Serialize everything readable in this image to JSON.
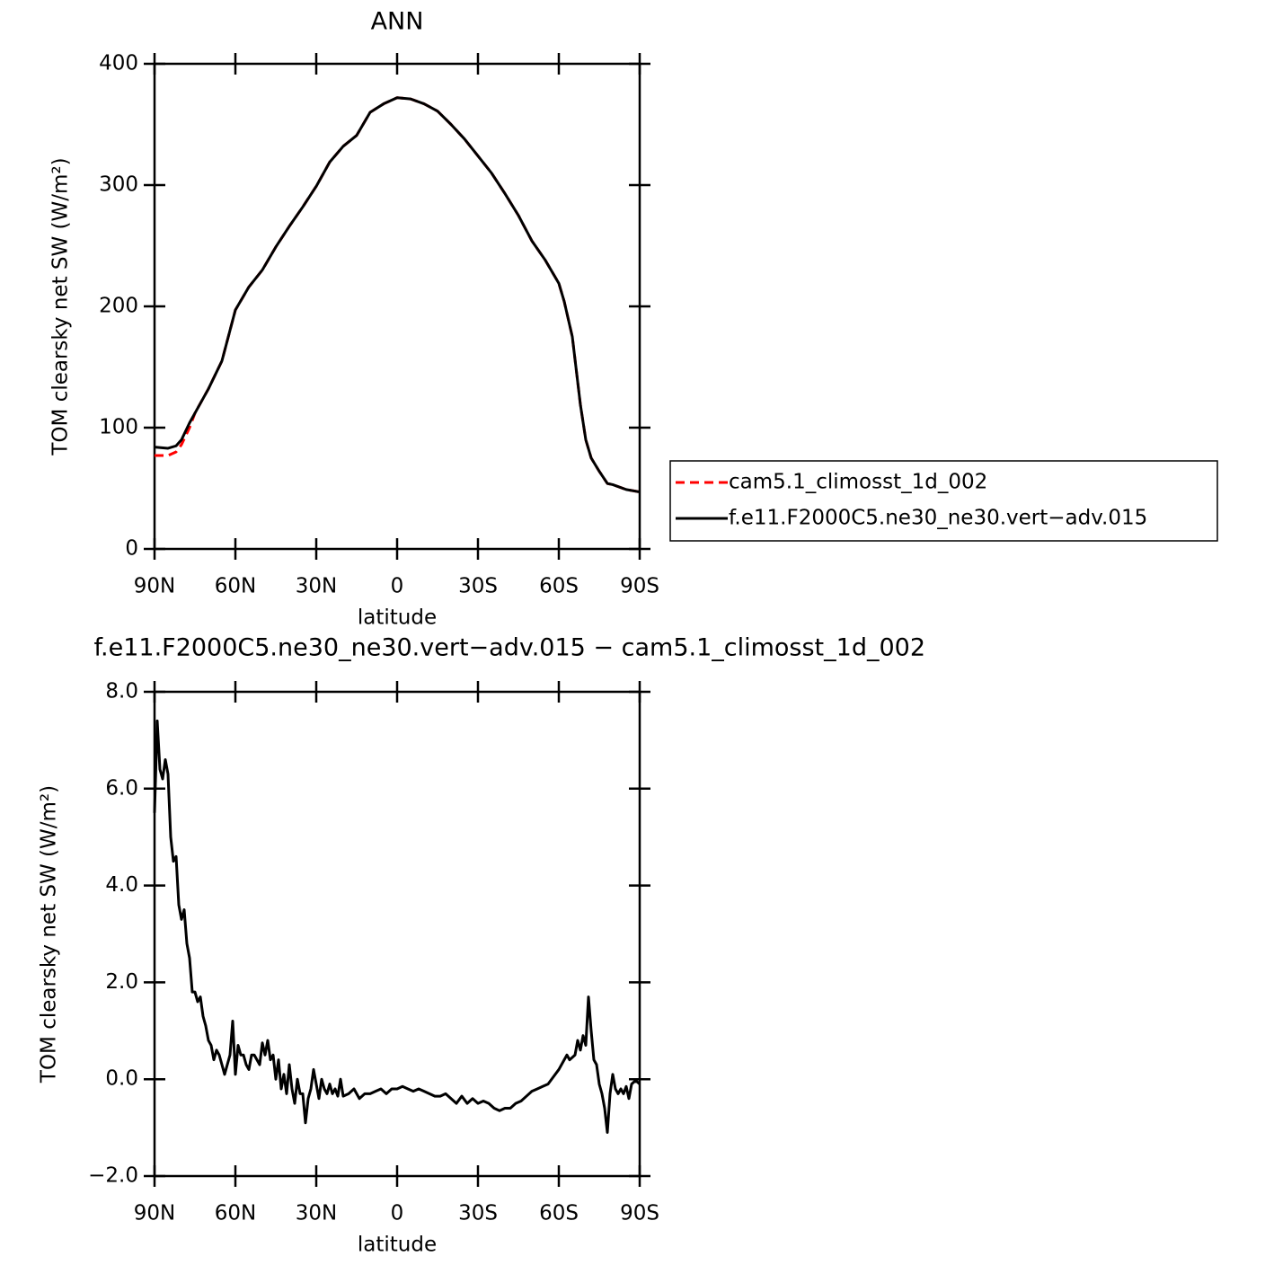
{
  "chart_data": [
    {
      "type": "line",
      "title": "ANN",
      "xlabel": "latitude",
      "ylabel": "TOM clearsky net SW (W/m²)",
      "xlim": [
        90,
        -90
      ],
      "xticks": [
        {
          "value": 90,
          "label": "90N"
        },
        {
          "value": 60,
          "label": "60N"
        },
        {
          "value": 30,
          "label": "30N"
        },
        0,
        {
          "value": -30,
          "label": "30S"
        },
        {
          "value": -60,
          "label": "60S"
        },
        {
          "value": -90,
          "label": "90S"
        }
      ],
      "ylim": [
        0,
        400
      ],
      "yticks": [
        0,
        100,
        200,
        300,
        400
      ],
      "x": [
        90,
        85,
        82,
        80,
        77,
        75,
        70,
        65,
        60,
        55,
        50,
        45,
        40,
        35,
        30,
        25,
        20,
        15,
        10,
        5,
        0,
        -5,
        -10,
        -15,
        -20,
        -25,
        -30,
        -35,
        -40,
        -45,
        -50,
        -55,
        -60,
        -62,
        -65,
        -68,
        -70,
        -72,
        -75,
        -78,
        -80,
        -85,
        -90
      ],
      "series": [
        {
          "name": "cam5.1_climosst_1d_002",
          "color": "#ff0000",
          "dashed": true,
          "values": [
            77,
            77,
            80,
            86,
            100,
            112,
            132,
            155,
            197,
            216,
            230,
            249,
            266,
            282,
            299,
            319,
            332,
            341,
            360,
            367,
            372,
            371,
            367,
            361,
            350,
            338,
            324,
            310,
            293,
            275,
            254,
            238,
            219,
            204,
            175,
            119,
            90,
            75,
            64,
            54,
            53,
            49,
            47
          ]
        },
        {
          "name": "f.e11.F2000C5.ne30_ne30.vert−adv.015",
          "color": "#000000",
          "dashed": false,
          "values": [
            84,
            83,
            85,
            90,
            104,
            112,
            132,
            155,
            197,
            216,
            230,
            249,
            266,
            282,
            299,
            319,
            332,
            341,
            360,
            367,
            372,
            371,
            367,
            361,
            350,
            338,
            324,
            310,
            293,
            275,
            254,
            238,
            219,
            204,
            175,
            119,
            90,
            75,
            64,
            54,
            53,
            49,
            47
          ]
        }
      ]
    },
    {
      "type": "line",
      "title": "f.e11.F2000C5.ne30_ne30.vert−adv.015 − cam5.1_climosst_1d_002",
      "xlabel": "latitude",
      "ylabel": "TOM clearsky net SW (W/m²)",
      "xlim": [
        90,
        -90
      ],
      "xticks": [
        {
          "value": 90,
          "label": "90N"
        },
        {
          "value": 60,
          "label": "60N"
        },
        {
          "value": 30,
          "label": "30N"
        },
        0,
        {
          "value": -30,
          "label": "30S"
        },
        {
          "value": -60,
          "label": "60S"
        },
        {
          "value": -90,
          "label": "90S"
        }
      ],
      "ylim": [
        -2,
        8
      ],
      "yticks": [
        {
          "value": -2,
          "label": "−2.0"
        },
        {
          "value": 0,
          "label": "0.0"
        },
        {
          "value": 2,
          "label": "2.0"
        },
        {
          "value": 4,
          "label": "4.0"
        },
        {
          "value": 6,
          "label": "6.0"
        },
        {
          "value": 8,
          "label": "8.0"
        }
      ],
      "color": "#000000",
      "x": [
        90,
        89,
        88,
        87,
        86,
        85,
        84,
        83,
        82,
        81,
        80,
        79,
        78,
        77,
        76,
        75,
        74,
        73,
        72,
        71,
        70,
        69,
        68,
        67,
        66,
        65,
        64,
        63,
        62,
        61,
        60,
        59,
        58,
        57,
        56,
        55,
        54,
        53,
        52,
        51,
        50,
        49,
        48,
        47,
        46,
        45,
        44,
        43,
        42,
        41,
        40,
        39,
        38,
        37,
        36,
        35,
        34,
        33,
        32,
        31,
        30,
        29,
        28,
        27,
        26,
        25,
        24,
        23,
        22,
        21,
        20,
        18,
        16,
        14,
        12,
        10,
        8,
        6,
        4,
        2,
        0,
        -2,
        -4,
        -6,
        -8,
        -10,
        -12,
        -14,
        -16,
        -18,
        -20,
        -22,
        -24,
        -26,
        -28,
        -30,
        -32,
        -34,
        -36,
        -38,
        -40,
        -42,
        -44,
        -46,
        -48,
        -50,
        -52,
        -54,
        -56,
        -58,
        -60,
        -62,
        -63,
        -64,
        -66,
        -67,
        -68,
        -69,
        -70,
        -71,
        -72,
        -73,
        -74,
        -75,
        -76,
        -77,
        -78,
        -79,
        -80,
        -81,
        -82,
        -83,
        -84,
        -85,
        -86,
        -87,
        -88,
        -89,
        -90
      ],
      "values": [
        5.5,
        7.4,
        6.4,
        6.2,
        6.6,
        6.3,
        5.0,
        4.5,
        4.6,
        3.6,
        3.3,
        3.5,
        2.8,
        2.5,
        1.8,
        1.8,
        1.6,
        1.7,
        1.3,
        1.1,
        0.8,
        0.7,
        0.4,
        0.6,
        0.5,
        0.3,
        0.1,
        0.3,
        0.5,
        1.2,
        0.1,
        0.7,
        0.5,
        0.5,
        0.3,
        0.2,
        0.5,
        0.5,
        0.4,
        0.3,
        0.75,
        0.5,
        0.8,
        0.4,
        0.5,
        0.0,
        0.4,
        -0.2,
        0.1,
        -0.3,
        0.3,
        -0.2,
        -0.5,
        0.0,
        -0.3,
        -0.3,
        -0.9,
        -0.4,
        -0.2,
        0.2,
        -0.1,
        -0.4,
        0.0,
        -0.2,
        -0.3,
        -0.1,
        -0.3,
        -0.2,
        -0.35,
        0.0,
        -0.35,
        -0.3,
        -0.2,
        -0.4,
        -0.3,
        -0.3,
        -0.25,
        -0.2,
        -0.3,
        -0.2,
        -0.2,
        -0.15,
        -0.2,
        -0.25,
        -0.2,
        -0.25,
        -0.3,
        -0.35,
        -0.35,
        -0.3,
        -0.4,
        -0.5,
        -0.35,
        -0.5,
        -0.4,
        -0.5,
        -0.45,
        -0.5,
        -0.6,
        -0.65,
        -0.6,
        -0.6,
        -0.5,
        -0.45,
        -0.35,
        -0.25,
        -0.2,
        -0.15,
        -0.1,
        0.05,
        0.2,
        0.4,
        0.5,
        0.4,
        0.5,
        0.8,
        0.6,
        0.9,
        0.7,
        1.7,
        1.0,
        0.4,
        0.3,
        -0.1,
        -0.3,
        -0.6,
        -1.1,
        -0.3,
        0.1,
        -0.2,
        -0.3,
        -0.2,
        -0.3,
        -0.15,
        -0.4,
        -0.1,
        -0.05,
        -0.05,
        -0.1
      ]
    }
  ]
}
